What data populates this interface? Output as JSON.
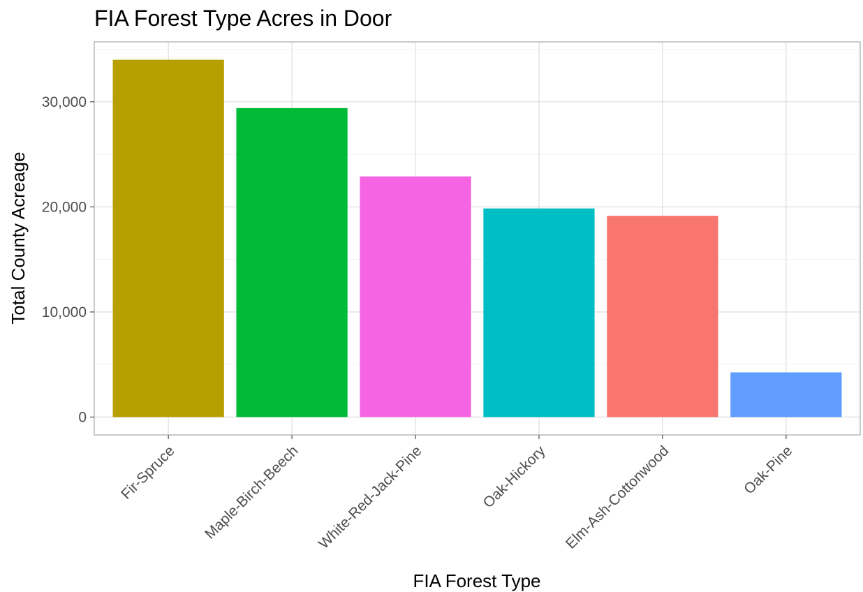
{
  "chart_data": {
    "type": "bar",
    "title": "FIA Forest Type Acres in Door",
    "xlabel": "FIA Forest Type",
    "ylabel": "Total County Acreage",
    "categories": [
      "Fir-Spruce",
      "Maple-Birch-Beech",
      "White-Red-Jack-Pine",
      "Oak-Hickory",
      "Elm-Ash-Cottonwood",
      "Oak-Pine"
    ],
    "values": [
      34000,
      29400,
      22900,
      19850,
      19150,
      4250
    ],
    "colors": [
      "#B79F00",
      "#00BA38",
      "#F564E3",
      "#00BFC4",
      "#F8766D",
      "#619CFF"
    ],
    "yticks": [
      0,
      10000,
      20000,
      30000
    ],
    "ytick_labels": [
      "0",
      "10,000",
      "20,000",
      "30,000"
    ],
    "ylim": [
      -1700,
      35700
    ],
    "grid": true,
    "legend": "none"
  }
}
